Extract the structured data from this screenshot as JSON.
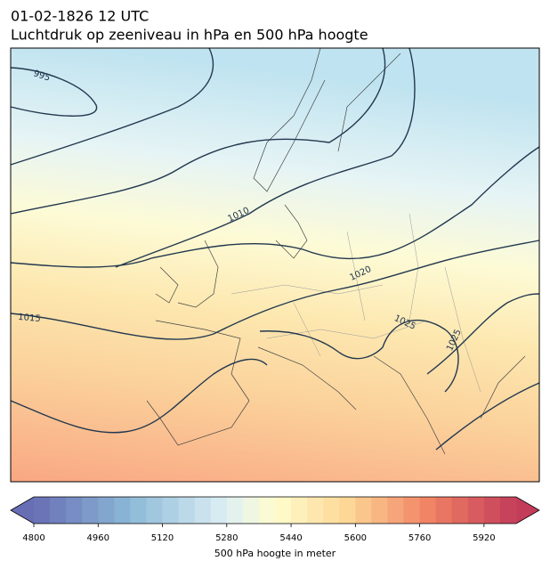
{
  "header": {
    "title": "01-02-1826 12 UTC",
    "subtitle": "Luchtdruk op zeeniveau in hPa en 500 hPa hoogte"
  },
  "map": {
    "isobar_labels": [
      995,
      1010,
      1015,
      1020,
      1025,
      1025
    ]
  },
  "colorbar": {
    "label": "500 hPa hoogte in meter",
    "lim": [
      4800,
      6000
    ],
    "ticks": [
      4800,
      4960,
      5120,
      5280,
      5440,
      5600,
      5760,
      5920
    ]
  }
}
